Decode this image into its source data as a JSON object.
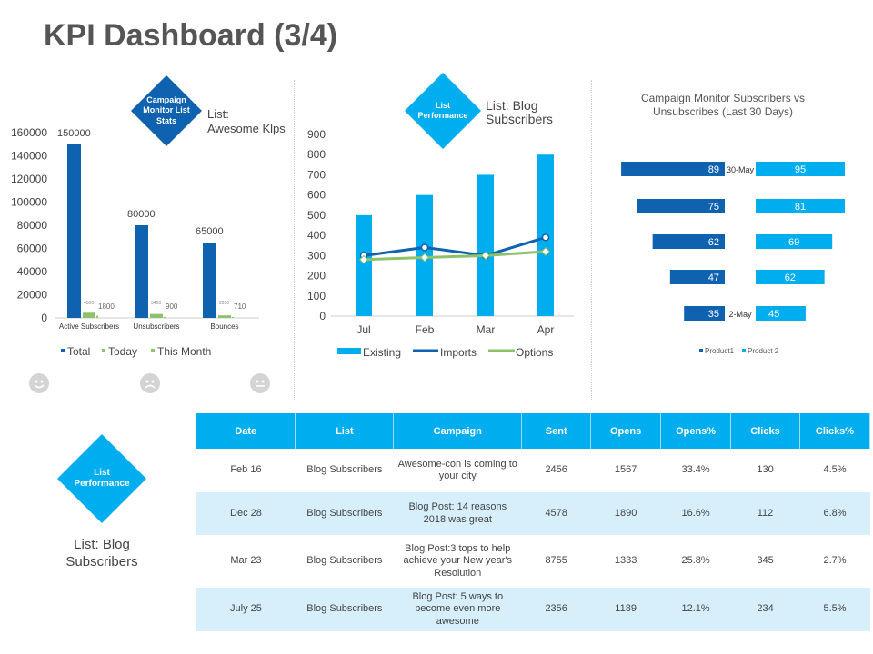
{
  "title": "KPI Dashboard (3/4)",
  "panel1": {
    "badge": "Campaign Monitor List Stats",
    "list_label": "List:",
    "list_name": "Awesome Klps",
    "badge_color": "#0e62b0",
    "faces": [
      "happy-face-icon",
      "sad-face-icon",
      "neutral-face-icon"
    ]
  },
  "panel2": {
    "badge": "List Performance",
    "list_label": "List: Blog Subscribers",
    "badge_color": "#00aeef"
  },
  "panel4": {
    "badge": "List Performance",
    "list_label": "List: Blog Subscribers"
  },
  "chart_data": [
    {
      "type": "bar",
      "categories": [
        "Active Subscribers",
        "Unsubscribers",
        "Bounces"
      ],
      "series": [
        {
          "name": "Total",
          "values": [
            150000,
            80000,
            65000
          ],
          "labels": [
            "150000",
            "80000",
            "65000"
          ],
          "color": "#0e62b0"
        },
        {
          "name": "Today",
          "values": [
            4500,
            3400,
            2200
          ],
          "labels": [
            "4500",
            "3400",
            "2200"
          ],
          "color": "#8dc26b"
        },
        {
          "name": "This Month",
          "values": [
            1800,
            900,
            710
          ],
          "labels": [
            "1800",
            "900",
            "710"
          ],
          "color": "#8dc26b"
        }
      ],
      "ylim": [
        0,
        160000
      ],
      "yticks": [
        "0",
        "20000",
        "40000",
        "60000",
        "80000",
        "100000",
        "120000",
        "140000",
        "160000"
      ],
      "legend": "bottom"
    },
    {
      "type": "bar+line",
      "categories": [
        "Jul",
        "Feb",
        "Mar",
        "Apr"
      ],
      "series": [
        {
          "name": "Existing",
          "kind": "bar",
          "values": [
            500,
            600,
            700,
            800
          ],
          "color": "#00aeef"
        },
        {
          "name": "Imports",
          "kind": "line",
          "values": [
            300,
            340,
            300,
            390
          ],
          "color": "#0e62b0"
        },
        {
          "name": "Options",
          "kind": "line",
          "values": [
            280,
            290,
            300,
            320
          ],
          "color": "#8dc26b"
        }
      ],
      "ylim": [
        0,
        900
      ],
      "yticks": [
        "0",
        "100",
        "200",
        "300",
        "400",
        "500",
        "600",
        "700",
        "800",
        "900"
      ],
      "legend": "bottom"
    },
    {
      "type": "bar",
      "orientation": "butterfly",
      "title": "Campaign Monitor Subscribers vs Unsubscribes (Last 30 Days)",
      "categories": [
        "30-May",
        "",
        "",
        "",
        "2-May"
      ],
      "series": [
        {
          "name": "Product1",
          "values": [
            89,
            75,
            62,
            47,
            35
          ],
          "color": "#0e62b0"
        },
        {
          "name": "Product 2",
          "values": [
            95,
            81,
            69,
            62,
            45
          ],
          "color": "#00aeef"
        }
      ],
      "legend": "bottom"
    }
  ],
  "table": {
    "headers": [
      "Date",
      "List",
      "Campaign",
      "Sent",
      "Opens",
      "Opens%",
      "Clicks",
      "Clicks%"
    ],
    "rows": [
      [
        "Feb 16",
        "Blog Subscribers",
        "Awesome-con is coming to your city",
        "2456",
        "1567",
        "33.4%",
        "130",
        "4.5%"
      ],
      [
        "Dec 28",
        "Blog Subscribers",
        "Blog Post: 14 reasons 2018 was great",
        "4578",
        "1890",
        "16.6%",
        "112",
        "6.8%"
      ],
      [
        "Mar 23",
        "Blog Subscribers",
        "Blog Post:3 tops to help achieve your New year's Resolution",
        "8755",
        "1333",
        "25.8%",
        "345",
        "2.7%"
      ],
      [
        "July 25",
        "Blog Subscribers",
        "Blog Post: 5 ways to become even more awesome",
        "2356",
        "1189",
        "12.1%",
        "234",
        "5.5%"
      ]
    ]
  }
}
